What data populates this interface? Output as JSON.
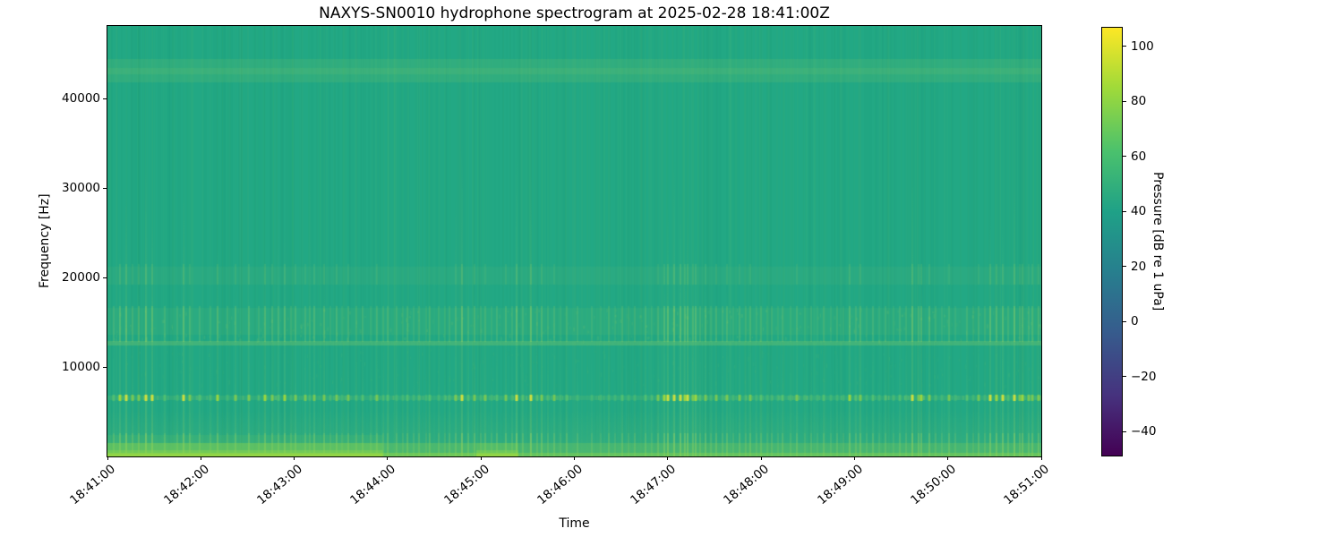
{
  "chart_data": {
    "type": "heatmap",
    "subtype": "spectrogram",
    "title": "NAXYS-SN0010 hydrophone spectrogram at 2025-02-28 18:41:00Z",
    "xlabel": "Time",
    "ylabel": "Frequency [Hz]",
    "value_label": "Pressure [dB re 1 uPa]",
    "x_tick_labels": [
      "18:41:00",
      "18:42:00",
      "18:43:00",
      "18:44:00",
      "18:45:00",
      "18:46:00",
      "18:47:00",
      "18:48:00",
      "18:49:00",
      "18:50:00",
      "18:51:00"
    ],
    "x_range_seconds": [
      0,
      600
    ],
    "y_range_hz": [
      0,
      48100
    ],
    "y_ticks_hz": [
      10000,
      20000,
      30000,
      40000
    ],
    "y_tick_labels": [
      "10000",
      "20000",
      "30000",
      "40000"
    ],
    "colorbar": {
      "label": "Pressure [dB re 1 uPa]",
      "tick_values": [
        100,
        80,
        60,
        40,
        20,
        0,
        -20,
        -40
      ],
      "tick_labels": [
        "100",
        "80",
        "60",
        "40",
        "20",
        "0",
        "−20",
        "−40"
      ],
      "vmin": -49,
      "vmax": 107,
      "colormap": "viridis",
      "colormap_stops": [
        [
          0,
          "#440154"
        ],
        [
          0.14,
          "#46327e"
        ],
        [
          0.29,
          "#365c8d"
        ],
        [
          0.43,
          "#277f8e"
        ],
        [
          0.57,
          "#1fa187"
        ],
        [
          0.71,
          "#4ac16d"
        ],
        [
          0.86,
          "#a0da39"
        ],
        [
          1,
          "#fde725"
        ]
      ]
    },
    "colors": {
      "base": "#22a884",
      "streak_light": "#bce15a",
      "click_bright": "#d6e23b",
      "click_mid": "#a0d83c",
      "click_dim": "#5fc96d",
      "surface_bright": "#8bd54b",
      "axis": "#000000",
      "figure_background": "#ffffff"
    },
    "features": {
      "background_level_db": 55,
      "click_band_hz": 6500,
      "click_band_peak_db": 95,
      "horizontal_bands_hz": [
        [
          41800,
          44400
        ],
        [
          12400,
          12900
        ],
        [
          13600,
          16600
        ],
        [
          19200,
          21200
        ]
      ],
      "surface_band_hz": [
        0,
        1500
      ],
      "surface_segments": [
        [
          0,
          0.295,
          1.0
        ],
        [
          0.295,
          0.395,
          0.5
        ],
        [
          0.395,
          0.44,
          0.85
        ],
        [
          0.44,
          1.0,
          0.3
        ]
      ],
      "transients": [
        [
          4,
          0.5,
          16000
        ],
        [
          8,
          0.75,
          24000
        ],
        [
          12,
          0.9,
          30000
        ],
        [
          16,
          0.55,
          18000
        ],
        [
          20,
          0.65,
          21000
        ],
        [
          25,
          0.95,
          33000
        ],
        [
          29,
          0.8,
          26000
        ],
        [
          37,
          0.5,
          15000
        ],
        [
          45,
          0.45,
          14000
        ],
        [
          49,
          0.85,
          30000
        ],
        [
          53,
          0.6,
          20000
        ],
        [
          59,
          0.5,
          16000
        ],
        [
          66,
          0.4,
          13000
        ],
        [
          71,
          0.7,
          24000
        ],
        [
          77,
          0.4,
          12000
        ],
        [
          82,
          0.6,
          19000
        ],
        [
          91,
          0.65,
          21000
        ],
        [
          97,
          0.4,
          14000
        ],
        [
          101,
          0.7,
          22000
        ],
        [
          106,
          0.55,
          17000
        ],
        [
          110,
          0.5,
          30000
        ],
        [
          114,
          0.75,
          26000
        ],
        [
          118,
          0.45,
          15000
        ],
        [
          121,
          0.6,
          19000
        ],
        [
          127,
          0.55,
          17000
        ],
        [
          130,
          0.4,
          34000
        ],
        [
          133,
          0.65,
          21000
        ],
        [
          139,
          0.6,
          19000
        ],
        [
          143,
          0.35,
          12000
        ],
        [
          147,
          0.6,
          18000
        ],
        [
          151,
          0.3,
          11000
        ],
        [
          155,
          0.55,
          16000
        ],
        [
          160,
          0.4,
          13000
        ],
        [
          164,
          0.5,
          15000
        ],
        [
          169,
          0.35,
          12000
        ],
        [
          173,
          0.55,
          17000
        ],
        [
          177,
          0.4,
          13000
        ],
        [
          180,
          0.5,
          15000
        ],
        [
          186,
          0.45,
          14000
        ],
        [
          190,
          0.3,
          11000
        ],
        [
          193,
          0.5,
          16000
        ],
        [
          197,
          0.35,
          12000
        ],
        [
          200,
          0.45,
          14000
        ],
        [
          205,
          0.3,
          11000
        ],
        [
          207,
          0.5,
          15000
        ],
        [
          213,
          0.4,
          13000
        ],
        [
          217,
          0.3,
          10000
        ],
        [
          220,
          0.45,
          14000
        ],
        [
          224,
          0.55,
          30000
        ],
        [
          228,
          0.95,
          36000
        ],
        [
          232,
          0.5,
          15000
        ],
        [
          236,
          0.6,
          19000
        ],
        [
          240,
          0.4,
          13000
        ],
        [
          243,
          0.55,
          17000
        ],
        [
          247,
          0.35,
          12000
        ],
        [
          250,
          0.5,
          15000
        ],
        [
          256,
          0.6,
          18000
        ],
        [
          260,
          0.4,
          13000
        ],
        [
          263,
          0.9,
          34000
        ],
        [
          267,
          0.5,
          15000
        ],
        [
          272,
          0.95,
          32000
        ],
        [
          276,
          0.5,
          16000
        ],
        [
          279,
          0.6,
          18000
        ],
        [
          283,
          0.35,
          12000
        ],
        [
          287,
          0.55,
          16000
        ],
        [
          291,
          0.3,
          11000
        ],
        [
          295,
          0.5,
          15000
        ],
        [
          302,
          0.45,
          14000
        ],
        [
          311,
          0.4,
          13000
        ],
        [
          317,
          0.3,
          10000
        ],
        [
          322,
          0.45,
          14000
        ],
        [
          326,
          0.3,
          10000
        ],
        [
          331,
          0.5,
          15000
        ],
        [
          335,
          0.35,
          11000
        ],
        [
          339,
          0.45,
          14000
        ],
        [
          346,
          0.5,
          15000
        ],
        [
          350,
          0.3,
          10000
        ],
        [
          354,
          0.55,
          17000
        ],
        [
          358,
          0.7,
          22000
        ],
        [
          360,
          0.85,
          28000
        ],
        [
          364,
          0.95,
          34000
        ],
        [
          368,
          0.9,
          30000
        ],
        [
          371,
          0.7,
          23000
        ],
        [
          373,
          0.8,
          27000
        ],
        [
          376,
          0.6,
          18000
        ],
        [
          378,
          0.75,
          25000
        ],
        [
          381,
          0.5,
          15000
        ],
        [
          384,
          0.65,
          20000
        ],
        [
          388,
          0.4,
          13000
        ],
        [
          391,
          0.6,
          18000
        ],
        [
          395,
          0.45,
          14000
        ],
        [
          398,
          0.6,
          19000
        ],
        [
          402,
          0.35,
          12000
        ],
        [
          406,
          0.55,
          17000
        ],
        [
          410,
          0.4,
          13000
        ],
        [
          413,
          0.6,
          18000
        ],
        [
          417,
          0.35,
          12000
        ],
        [
          420,
          0.5,
          15000
        ],
        [
          424,
          0.35,
          11000
        ],
        [
          427,
          0.45,
          14000
        ],
        [
          431,
          0.3,
          10000
        ],
        [
          434,
          0.5,
          15000
        ],
        [
          439,
          0.35,
          12000
        ],
        [
          443,
          0.55,
          16000
        ],
        [
          448,
          0.3,
          10000
        ],
        [
          452,
          0.45,
          14000
        ],
        [
          456,
          0.3,
          10000
        ],
        [
          460,
          0.5,
          15000
        ],
        [
          465,
          0.35,
          11000
        ],
        [
          469,
          0.45,
          14000
        ],
        [
          473,
          0.3,
          10000
        ],
        [
          477,
          0.75,
          26000
        ],
        [
          481,
          0.5,
          15000
        ],
        [
          484,
          0.6,
          18000
        ],
        [
          488,
          0.35,
          12000
        ],
        [
          492,
          0.5,
          15000
        ],
        [
          496,
          0.3,
          10000
        ],
        [
          500,
          0.45,
          14000
        ],
        [
          505,
          0.3,
          10000
        ],
        [
          509,
          0.5,
          15000
        ],
        [
          513,
          0.4,
          13000
        ],
        [
          517,
          0.9,
          32000
        ],
        [
          521,
          0.6,
          18000
        ],
        [
          523,
          0.7,
          22000
        ],
        [
          528,
          0.65,
          20000
        ],
        [
          532,
          0.4,
          13000
        ],
        [
          536,
          0.35,
          12000
        ],
        [
          541,
          0.55,
          16000
        ],
        [
          545,
          0.35,
          11000
        ],
        [
          552,
          0.5,
          15000
        ],
        [
          556,
          0.3,
          10000
        ],
        [
          560,
          0.55,
          17000
        ],
        [
          564,
          0.4,
          12000
        ],
        [
          567,
          0.85,
          28000
        ],
        [
          571,
          0.7,
          22000
        ],
        [
          575,
          0.8,
          26000
        ],
        [
          579,
          0.5,
          15000
        ],
        [
          583,
          0.9,
          30000
        ],
        [
          586,
          0.6,
          18000
        ],
        [
          588,
          0.7,
          22000
        ],
        [
          592,
          0.55,
          16000
        ],
        [
          594,
          0.65,
          20000
        ],
        [
          598,
          0.6,
          18000
        ]
      ]
    }
  }
}
